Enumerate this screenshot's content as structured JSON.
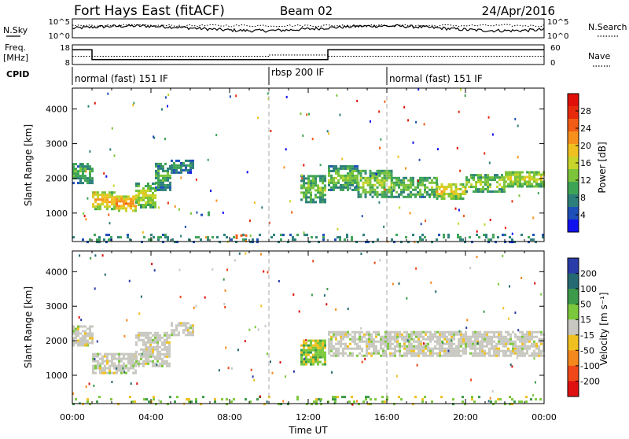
{
  "header": {
    "station": "Fort Hays East (fitACF)",
    "beam": "Beam 02",
    "date": "24/Apr/2016"
  },
  "noise_panel": {
    "left_label": "N.Sky",
    "right_label": "N.Search",
    "left_ticks": [
      "10^5",
      "10^0"
    ],
    "right_ticks": [
      "10^5",
      "10^0"
    ]
  },
  "freq_panel": {
    "left_label_1": "Freq.",
    "left_label_2": "[MHz]",
    "right_label": "Nave",
    "left_ticks": [
      "18",
      "8"
    ],
    "right_ticks": [
      "60",
      "0"
    ],
    "freq_steps": [
      {
        "t": 0.0,
        "v": 15.5
      },
      {
        "t": 1.0,
        "v": 10.5
      },
      {
        "t": 9.5,
        "v": 10.5
      },
      {
        "t": 13.0,
        "v": 15.5
      },
      {
        "t": 24.0,
        "v": 15.5
      }
    ],
    "nave_steps": [
      {
        "t": 0.0,
        "v": 25
      },
      {
        "t": 10.0,
        "v": 29
      },
      {
        "t": 13.0,
        "v": 25
      },
      {
        "t": 24.0,
        "v": 25
      }
    ]
  },
  "cpid": {
    "label": "CPID",
    "segments": [
      {
        "name": "normal (fast) 151 IF",
        "start": 0.0
      },
      {
        "name": "rbsp 200 IF",
        "start": 10.0
      },
      {
        "name": "normal (fast) 151 IF",
        "start": 16.0
      }
    ]
  },
  "chart_data": [
    {
      "type": "heatmap",
      "title": "Power",
      "xlabel": "",
      "ylabel": "Slant Range [km]",
      "x_range_hours": [
        0,
        24
      ],
      "ylim": [
        180,
        4600
      ],
      "y_ticks": [
        1000,
        2000,
        3000,
        4000
      ],
      "colorbar_label": "Power [dB]",
      "colorbar_ticks": [
        "4",
        "8",
        "12",
        "16",
        "20",
        "24",
        "28"
      ],
      "colorbar_range": [
        0,
        30
      ],
      "colors": [
        "#1010ee",
        "#1e4fb8",
        "#2c7f7a",
        "#3ea455",
        "#7cc43a",
        "#c8d42a",
        "#f0c020",
        "#f7901c",
        "#f25c14",
        "#e82a0c",
        "#e01008"
      ],
      "echo_bands": [
        {
          "t0": 0.0,
          "t1": 1.0,
          "r0": 1900,
          "r1": 2500,
          "p": 10
        },
        {
          "t0": 1.0,
          "t1": 2.2,
          "r0": 1150,
          "r1": 1650,
          "p": 20
        },
        {
          "t0": 2.2,
          "t1": 3.2,
          "r0": 1100,
          "r1": 1550,
          "p": 24
        },
        {
          "t0": 3.2,
          "t1": 4.2,
          "r0": 1200,
          "r1": 1900,
          "p": 16
        },
        {
          "t0": 4.2,
          "t1": 5.0,
          "r0": 1700,
          "r1": 2500,
          "p": 10
        },
        {
          "t0": 5.0,
          "t1": 6.1,
          "r0": 2200,
          "r1": 2550,
          "p": 8
        },
        {
          "t0": 6.4,
          "t1": 7.2,
          "r0": 980,
          "r1": 1060,
          "p": 10
        },
        {
          "t0": 11.6,
          "t1": 12.9,
          "r0": 1350,
          "r1": 2100,
          "p": 12
        },
        {
          "t0": 13.0,
          "t1": 14.5,
          "r0": 1700,
          "r1": 2400,
          "p": 12
        },
        {
          "t0": 14.5,
          "t1": 16.2,
          "r0": 1500,
          "r1": 2300,
          "p": 14
        },
        {
          "t0": 16.2,
          "t1": 18.5,
          "r0": 1500,
          "r1": 2100,
          "p": 12
        },
        {
          "t0": 18.5,
          "t1": 20.0,
          "r0": 1450,
          "r1": 1900,
          "p": 18
        },
        {
          "t0": 20.0,
          "t1": 22.0,
          "r0": 1650,
          "r1": 2150,
          "p": 14
        },
        {
          "t0": 22.0,
          "t1": 24.0,
          "r0": 1800,
          "r1": 2250,
          "p": 16
        },
        {
          "t0": 0.0,
          "t1": 24.0,
          "r0": 200,
          "r1": 450,
          "p": 8
        },
        {
          "t0": 8.3,
          "t1": 9.3,
          "r0": 250,
          "r1": 450,
          "p": 28
        }
      ]
    },
    {
      "type": "heatmap",
      "title": "Velocity",
      "xlabel": "Time UT",
      "ylabel": "Slant Range [km]",
      "x_range_hours": [
        0,
        24
      ],
      "x_ticks": [
        "00:00",
        "04:00",
        "08:00",
        "12:00",
        "16:00",
        "20:00",
        "00:00"
      ],
      "ylim": [
        180,
        4600
      ],
      "y_ticks": [
        1000,
        2000,
        3000,
        4000
      ],
      "colorbar_label": "Velocity [m s⁻¹]",
      "colorbar_ticks": [
        "200",
        "100",
        "50",
        "15",
        "-15",
        "-50",
        "-100",
        "-200"
      ],
      "colors": [
        "#2a3ca8",
        "#256a72",
        "#3c9a4a",
        "#7cc83c",
        "#c8c8c0",
        "#f0c020",
        "#f5881c",
        "#f04818",
        "#e01010"
      ],
      "echo_bands": [
        {
          "t0": 0.0,
          "t1": 1.0,
          "r0": 1900,
          "r1": 2500,
          "v": 0
        },
        {
          "t0": 1.0,
          "t1": 3.2,
          "r0": 1100,
          "r1": 1650,
          "v": 0
        },
        {
          "t0": 3.2,
          "t1": 5.0,
          "r0": 1300,
          "r1": 2300,
          "v": 0
        },
        {
          "t0": 5.0,
          "t1": 6.1,
          "r0": 2200,
          "r1": 2550,
          "v": 0
        },
        {
          "t0": 11.6,
          "t1": 12.9,
          "r0": 1350,
          "r1": 2050,
          "v": 30
        },
        {
          "t0": 13.0,
          "t1": 24.0,
          "r0": 1600,
          "r1": 2350,
          "v": 0
        },
        {
          "t0": 0.0,
          "t1": 24.0,
          "r0": 200,
          "r1": 450,
          "v": 30
        }
      ]
    }
  ]
}
